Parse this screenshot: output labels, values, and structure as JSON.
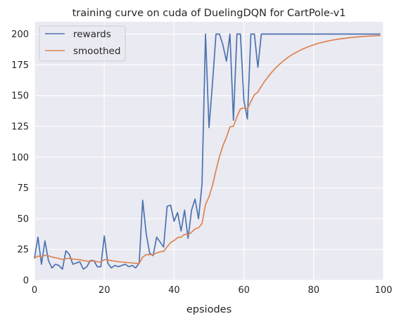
{
  "chart_data": {
    "type": "line",
    "title": "training curve on cuda of DuelingDQN for CartPole-v1",
    "xlabel": "epsiodes",
    "ylabel": "",
    "xlim": [
      0,
      100
    ],
    "ylim": [
      0,
      210
    ],
    "x_ticks": [
      0,
      20,
      40,
      60,
      80,
      100
    ],
    "y_ticks": [
      0,
      25,
      50,
      75,
      100,
      125,
      150,
      175,
      200
    ],
    "grid": true,
    "legend_position": "upper-left",
    "colors": {
      "background": "#eaeaf2",
      "grid": "#ffffff",
      "rewards": "#4c72b0",
      "smoothed": "#dd8452"
    },
    "x": [
      0,
      1,
      2,
      3,
      4,
      5,
      6,
      7,
      8,
      9,
      10,
      11,
      12,
      13,
      14,
      15,
      16,
      17,
      18,
      19,
      20,
      21,
      22,
      23,
      24,
      25,
      26,
      27,
      28,
      29,
      30,
      31,
      32,
      33,
      34,
      35,
      36,
      37,
      38,
      39,
      40,
      41,
      42,
      43,
      44,
      45,
      46,
      47,
      48,
      49,
      50,
      51,
      52,
      53,
      54,
      55,
      56,
      57,
      58,
      59,
      60,
      61,
      62,
      63,
      64,
      65,
      66,
      67,
      68,
      69,
      70,
      71,
      72,
      73,
      74,
      75,
      76,
      77,
      78,
      79,
      80,
      81,
      82,
      83,
      84,
      85,
      86,
      87,
      88,
      89,
      90,
      91,
      92,
      93,
      94,
      95,
      96,
      97,
      98,
      99
    ],
    "series": [
      {
        "name": "rewards",
        "values": [
          18,
          35,
          13,
          32,
          16,
          10,
          13,
          12,
          9,
          24,
          21,
          13,
          14,
          15,
          9,
          11,
          16,
          16,
          11,
          11,
          36,
          14,
          10,
          12,
          11,
          12,
          13,
          11,
          12,
          10,
          14,
          65,
          38,
          22,
          20,
          35,
          31,
          27,
          60,
          61,
          48,
          55,
          40,
          57,
          34,
          57,
          66,
          50,
          78,
          200,
          124,
          160,
          200,
          200,
          191,
          178,
          200,
          130,
          200,
          200,
          146,
          131,
          200,
          200,
          173,
          200,
          200,
          200,
          200,
          200,
          200,
          200,
          200,
          200,
          200,
          200,
          200,
          200,
          200,
          200,
          200,
          200,
          200,
          200,
          200,
          200,
          200,
          200,
          200,
          200,
          200,
          200,
          200,
          200,
          200,
          200,
          200,
          200,
          200,
          200
        ]
      },
      {
        "name": "smoothed",
        "values": [
          18,
          19.7,
          19,
          20.3,
          19.9,
          18.9,
          18.3,
          17.7,
          16.8,
          17.5,
          17.8,
          17.3,
          16.9,
          16.7,
          16,
          15.5,
          15.5,
          15.6,
          15.1,
          14.7,
          16.8,
          16.5,
          15.9,
          15.5,
          15.1,
          14.8,
          14.6,
          14.3,
          14.1,
          13.7,
          13.7,
          18.8,
          20.8,
          20.9,
          20.8,
          22.2,
          23.1,
          23.5,
          27.2,
          30.6,
          32.3,
          34.6,
          35.1,
          37.3,
          37,
          39,
          41.7,
          42.6,
          46.1,
          61.5,
          67.8,
          77,
          89.3,
          100.4,
          109.4,
          116.2,
          124.6,
          125.1,
          132.6,
          139.3,
          140,
          139.1,
          145.2,
          150.7,
          152.9,
          157.6,
          161.8,
          165.6,
          169.1,
          172.2,
          175,
          177.5,
          179.7,
          181.8,
          183.6,
          185.2,
          186.7,
          188,
          189.2,
          190.3,
          191.3,
          192.2,
          193,
          193.7,
          194.3,
          194.9,
          195.4,
          195.8,
          196.3,
          196.6,
          197,
          197.3,
          197.5,
          197.8,
          198,
          198.2,
          198.4,
          198.5,
          198.7,
          198.8
        ]
      }
    ]
  }
}
